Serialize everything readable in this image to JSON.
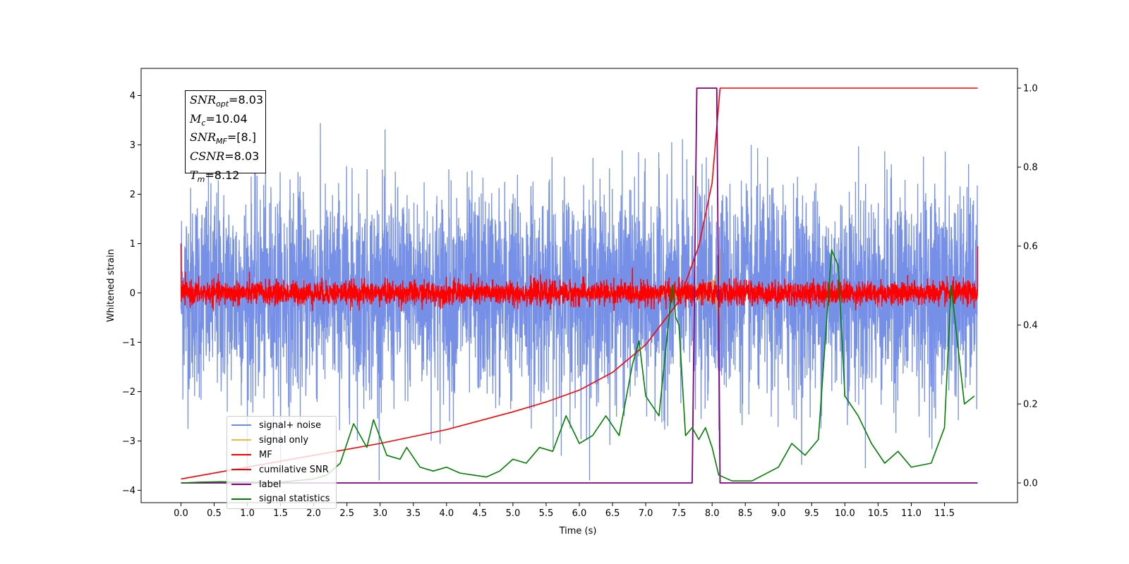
{
  "chart_data": {
    "type": "line",
    "xlabel": "Time (s)",
    "ylabel": "Whitened strain",
    "xlim": [
      -0.6,
      12.6
    ],
    "ylim": [
      -4.25,
      4.55
    ],
    "y2lim": [
      -0.05,
      1.05
    ],
    "xticks": [
      "0.0",
      "0.5",
      "1.0",
      "1.5",
      "2.0",
      "2.5",
      "3.0",
      "3.5",
      "4.0",
      "4.5",
      "5.0",
      "5.5",
      "6.0",
      "6.5",
      "7.0",
      "7.5",
      "8.0",
      "8.5",
      "9.0",
      "9.5",
      "10.0",
      "10.5",
      "11.0",
      "11.5"
    ],
    "yticks": [
      "4",
      "3",
      "2",
      "1",
      "0",
      "−1",
      "−2",
      "−3",
      "−4"
    ],
    "y2ticks": [
      "1.0",
      "0.8",
      "0.6",
      "0.4",
      "0.2",
      "0.0"
    ],
    "colors": {
      "signal_noise": "#6f8ae6",
      "signal_only": "#f5b942",
      "mf": "#ff0000",
      "cumulative_snr": "#ff0000",
      "label": "#800080",
      "signal_statistics": "#008000"
    },
    "series": [
      {
        "name": "signal+ noise",
        "axis": "left",
        "noise_sd": 1.0,
        "range": [
          -3.8,
          4.2
        ],
        "t_range": [
          0.0,
          12.0
        ]
      },
      {
        "name": "signal only",
        "axis": "left",
        "chirp_end": 8.12,
        "peak_amplitude": 1.0
      },
      {
        "name": "MF",
        "axis": "left",
        "noise_sd": 0.12,
        "start_value": 1.0,
        "end_value": 0.95
      },
      {
        "name": "cumilative SNR",
        "axis": "right",
        "x": [
          0.0,
          1.0,
          2.0,
          3.0,
          4.0,
          5.0,
          5.5,
          6.0,
          6.5,
          7.0,
          7.5,
          7.8,
          8.0,
          8.12,
          12.0
        ],
        "y": [
          0.01,
          0.04,
          0.07,
          0.1,
          0.135,
          0.18,
          0.205,
          0.235,
          0.28,
          0.35,
          0.46,
          0.6,
          0.76,
          1.0,
          1.0
        ]
      },
      {
        "name": "label",
        "axis": "right",
        "x": [
          0.0,
          7.7,
          7.77,
          8.07,
          8.12,
          12.0
        ],
        "y": [
          0.0,
          0.0,
          1.0,
          1.0,
          0.0,
          0.0
        ]
      },
      {
        "name": "signal statistics",
        "axis": "right",
        "x": [
          0.0,
          0.3,
          0.6,
          1.0,
          1.5,
          2.0,
          2.2,
          2.4,
          2.6,
          2.8,
          2.9,
          3.1,
          3.3,
          3.4,
          3.6,
          3.8,
          4.0,
          4.2,
          4.4,
          4.6,
          4.8,
          5.0,
          5.2,
          5.4,
          5.6,
          5.8,
          6.0,
          6.2,
          6.4,
          6.6,
          6.8,
          6.9,
          7.0,
          7.2,
          7.4,
          7.45,
          7.5,
          7.6,
          7.7,
          7.8,
          7.9,
          8.0,
          8.1,
          8.3,
          8.6,
          9.0,
          9.2,
          9.4,
          9.6,
          9.8,
          9.9,
          10.0,
          10.2,
          10.4,
          10.6,
          10.8,
          11.0,
          11.3,
          11.5,
          11.6,
          11.8,
          11.95
        ],
        "y": [
          0.0,
          0.002,
          0.003,
          0.002,
          0.002,
          0.01,
          0.02,
          0.05,
          0.15,
          0.09,
          0.16,
          0.07,
          0.06,
          0.09,
          0.04,
          0.03,
          0.04,
          0.025,
          0.02,
          0.015,
          0.03,
          0.06,
          0.05,
          0.09,
          0.08,
          0.17,
          0.1,
          0.12,
          0.17,
          0.12,
          0.3,
          0.36,
          0.22,
          0.17,
          0.5,
          0.42,
          0.4,
          0.12,
          0.14,
          0.11,
          0.14,
          0.09,
          0.02,
          0.005,
          0.005,
          0.04,
          0.1,
          0.07,
          0.11,
          0.59,
          0.55,
          0.22,
          0.17,
          0.1,
          0.05,
          0.08,
          0.04,
          0.05,
          0.14,
          0.5,
          0.2,
          0.22
        ]
      }
    ],
    "legend": {
      "placement": "lower-left",
      "entries": [
        "signal+ noise",
        "signal only",
        "MF",
        "cumilative SNR",
        "label",
        "signal statistics"
      ]
    },
    "annotation": {
      "lines": [
        {
          "var": "SNR",
          "sub": "opt",
          "value": "=8.03"
        },
        {
          "var": "M",
          "sub": "c",
          "value": "=10.04"
        },
        {
          "var": "SNR",
          "sub": "MF",
          "value": "=[8.]"
        },
        {
          "var": "CSNR",
          "sub": "",
          "value": "=8.03"
        },
        {
          "var": "T",
          "sub": "m",
          "value": "=8.12"
        }
      ]
    }
  }
}
